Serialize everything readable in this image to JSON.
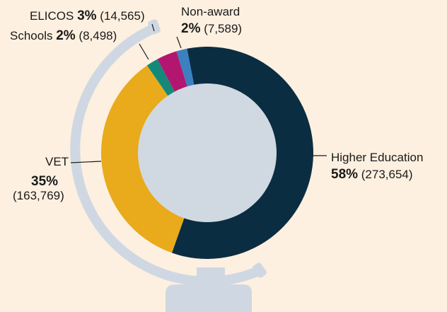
{
  "chart_data": {
    "type": "donut",
    "categories": [
      "Higher Education",
      "VET",
      "Schools",
      "ELICOS",
      "Non-award"
    ],
    "values": [
      273654,
      163769,
      8498,
      14565,
      7589
    ],
    "value_labels": [
      "(273,654)",
      "(163,769)",
      "(8,498)",
      "(14,565)",
      "(7,589)"
    ],
    "percent_labels": [
      "58%",
      "35%",
      "2%",
      "3%",
      "2%"
    ],
    "colors": [
      "#0b2d42",
      "#e9aa1b",
      "#14897a",
      "#b3166f",
      "#3b80bf"
    ]
  }
}
